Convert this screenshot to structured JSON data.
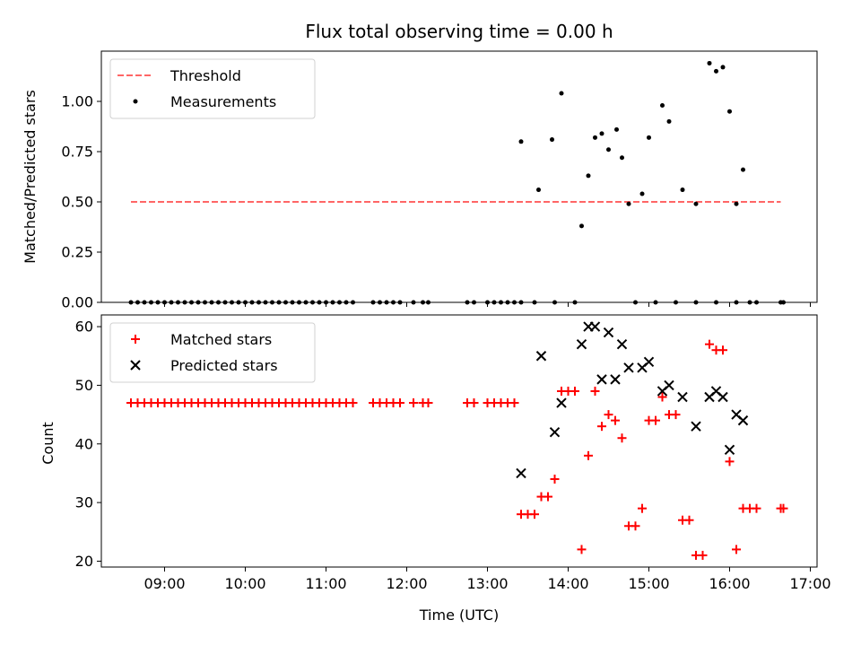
{
  "chart_data": [
    {
      "type": "scatter",
      "title": "Flux total observing time = 0.00 h",
      "xlabel": "",
      "ylabel": "Matched/Predicted stars",
      "xlim": [
        "08:13",
        "17:05"
      ],
      "ylim": [
        0,
        1.25
      ],
      "yticks": [
        "0.00",
        "0.25",
        "0.50",
        "0.75",
        "1.00"
      ],
      "grid": false,
      "legend_position": "top-left",
      "threshold": {
        "name": "Threshold",
        "value": 0.5,
        "x_range": [
          "08:35",
          "16:38"
        ],
        "color": "#ff6666",
        "style": "dashed"
      },
      "series": [
        {
          "name": "Measurements",
          "marker": "dot",
          "color": "#000000",
          "points": [
            [
              "08:35",
              0
            ],
            [
              "08:40",
              0
            ],
            [
              "08:45",
              0
            ],
            [
              "08:50",
              0
            ],
            [
              "08:55",
              0
            ],
            [
              "09:00",
              0
            ],
            [
              "09:05",
              0
            ],
            [
              "09:10",
              0
            ],
            [
              "09:15",
              0
            ],
            [
              "09:20",
              0
            ],
            [
              "09:25",
              0
            ],
            [
              "09:30",
              0
            ],
            [
              "09:35",
              0
            ],
            [
              "09:40",
              0
            ],
            [
              "09:45",
              0
            ],
            [
              "09:50",
              0
            ],
            [
              "09:55",
              0
            ],
            [
              "10:00",
              0
            ],
            [
              "10:05",
              0
            ],
            [
              "10:10",
              0
            ],
            [
              "10:15",
              0
            ],
            [
              "10:20",
              0
            ],
            [
              "10:25",
              0
            ],
            [
              "10:30",
              0
            ],
            [
              "10:35",
              0
            ],
            [
              "10:40",
              0
            ],
            [
              "10:45",
              0
            ],
            [
              "10:50",
              0
            ],
            [
              "10:55",
              0
            ],
            [
              "11:00",
              0
            ],
            [
              "11:05",
              0
            ],
            [
              "11:10",
              0
            ],
            [
              "11:15",
              0
            ],
            [
              "11:20",
              0
            ],
            [
              "11:35",
              0
            ],
            [
              "11:40",
              0
            ],
            [
              "11:45",
              0
            ],
            [
              "11:50",
              0
            ],
            [
              "11:55",
              0
            ],
            [
              "12:05",
              0
            ],
            [
              "12:12",
              0
            ],
            [
              "12:16",
              0
            ],
            [
              "12:45",
              0
            ],
            [
              "12:50",
              0
            ],
            [
              "13:00",
              0
            ],
            [
              "13:05",
              0
            ],
            [
              "13:10",
              0
            ],
            [
              "13:15",
              0
            ],
            [
              "13:20",
              0
            ],
            [
              "13:25",
              0
            ],
            [
              "13:35",
              0
            ],
            [
              "13:50",
              0
            ],
            [
              "14:05",
              0
            ],
            [
              "14:50",
              0
            ],
            [
              "15:05",
              0
            ],
            [
              "15:20",
              0
            ],
            [
              "15:35",
              0
            ],
            [
              "15:50",
              0
            ],
            [
              "16:05",
              0
            ],
            [
              "16:15",
              0
            ],
            [
              "16:20",
              0
            ],
            [
              "16:38",
              0
            ],
            [
              "16:40",
              0
            ],
            [
              "13:25",
              0.8
            ],
            [
              "13:38",
              0.56
            ],
            [
              "13:48",
              0.81
            ],
            [
              "13:55",
              1.04
            ],
            [
              "14:10",
              0.38
            ],
            [
              "14:15",
              0.63
            ],
            [
              "14:20",
              0.82
            ],
            [
              "14:25",
              0.84
            ],
            [
              "14:30",
              0.76
            ],
            [
              "14:36",
              0.86
            ],
            [
              "14:40",
              0.72
            ],
            [
              "14:45",
              0.49
            ],
            [
              "14:55",
              0.54
            ],
            [
              "15:00",
              0.82
            ],
            [
              "15:10",
              0.98
            ],
            [
              "15:15",
              0.9
            ],
            [
              "15:25",
              0.56
            ],
            [
              "15:35",
              0.49
            ],
            [
              "15:45",
              1.19
            ],
            [
              "15:50",
              1.15
            ],
            [
              "15:55",
              1.17
            ],
            [
              "16:00",
              0.95
            ],
            [
              "16:05",
              0.49
            ],
            [
              "16:10",
              0.66
            ]
          ]
        }
      ]
    },
    {
      "type": "scatter",
      "title": "",
      "xlabel": "Time (UTC)",
      "ylabel": "Count",
      "xlim": [
        "08:13",
        "17:05"
      ],
      "ylim": [
        19,
        62
      ],
      "yticks": [
        "20",
        "30",
        "40",
        "50",
        "60"
      ],
      "xticks": [
        "09:00",
        "10:00",
        "11:00",
        "12:00",
        "13:00",
        "14:00",
        "15:00",
        "16:00",
        "17:00"
      ],
      "grid": false,
      "legend_position": "top-left",
      "series": [
        {
          "name": "Matched stars",
          "marker": "plus",
          "color": "#ff0000",
          "points": [
            [
              "08:35",
              47
            ],
            [
              "08:40",
              47
            ],
            [
              "08:45",
              47
            ],
            [
              "08:50",
              47
            ],
            [
              "08:55",
              47
            ],
            [
              "09:00",
              47
            ],
            [
              "09:05",
              47
            ],
            [
              "09:10",
              47
            ],
            [
              "09:15",
              47
            ],
            [
              "09:20",
              47
            ],
            [
              "09:25",
              47
            ],
            [
              "09:30",
              47
            ],
            [
              "09:35",
              47
            ],
            [
              "09:40",
              47
            ],
            [
              "09:45",
              47
            ],
            [
              "09:50",
              47
            ],
            [
              "09:55",
              47
            ],
            [
              "10:00",
              47
            ],
            [
              "10:05",
              47
            ],
            [
              "10:10",
              47
            ],
            [
              "10:15",
              47
            ],
            [
              "10:20",
              47
            ],
            [
              "10:25",
              47
            ],
            [
              "10:30",
              47
            ],
            [
              "10:35",
              47
            ],
            [
              "10:40",
              47
            ],
            [
              "10:45",
              47
            ],
            [
              "10:50",
              47
            ],
            [
              "10:55",
              47
            ],
            [
              "11:00",
              47
            ],
            [
              "11:05",
              47
            ],
            [
              "11:10",
              47
            ],
            [
              "11:15",
              47
            ],
            [
              "11:20",
              47
            ],
            [
              "11:35",
              47
            ],
            [
              "11:40",
              47
            ],
            [
              "11:45",
              47
            ],
            [
              "11:50",
              47
            ],
            [
              "11:55",
              47
            ],
            [
              "12:05",
              47
            ],
            [
              "12:12",
              47
            ],
            [
              "12:16",
              47
            ],
            [
              "12:45",
              47
            ],
            [
              "12:50",
              47
            ],
            [
              "13:00",
              47
            ],
            [
              "13:05",
              47
            ],
            [
              "13:10",
              47
            ],
            [
              "13:15",
              47
            ],
            [
              "13:20",
              47
            ],
            [
              "13:25",
              28
            ],
            [
              "13:30",
              28
            ],
            [
              "13:35",
              28
            ],
            [
              "13:40",
              31
            ],
            [
              "13:45",
              31
            ],
            [
              "13:50",
              34
            ],
            [
              "13:55",
              49
            ],
            [
              "14:00",
              49
            ],
            [
              "14:05",
              49
            ],
            [
              "14:10",
              22
            ],
            [
              "14:15",
              38
            ],
            [
              "14:20",
              49
            ],
            [
              "14:25",
              43
            ],
            [
              "14:30",
              45
            ],
            [
              "14:35",
              44
            ],
            [
              "14:40",
              41
            ],
            [
              "14:45",
              26
            ],
            [
              "14:50",
              26
            ],
            [
              "14:55",
              29
            ],
            [
              "15:00",
              44
            ],
            [
              "15:05",
              44
            ],
            [
              "15:10",
              48
            ],
            [
              "15:15",
              45
            ],
            [
              "15:20",
              45
            ],
            [
              "15:25",
              27
            ],
            [
              "15:30",
              27
            ],
            [
              "15:35",
              21
            ],
            [
              "15:40",
              21
            ],
            [
              "15:45",
              57
            ],
            [
              "15:50",
              56
            ],
            [
              "15:55",
              56
            ],
            [
              "16:00",
              37
            ],
            [
              "16:05",
              22
            ],
            [
              "16:10",
              29
            ],
            [
              "16:15",
              29
            ],
            [
              "16:20",
              29
            ],
            [
              "16:38",
              29
            ],
            [
              "16:40",
              29
            ]
          ]
        },
        {
          "name": "Predicted stars",
          "marker": "x",
          "color": "#000000",
          "points": [
            [
              "13:25",
              35
            ],
            [
              "13:40",
              55
            ],
            [
              "13:50",
              42
            ],
            [
              "13:55",
              47
            ],
            [
              "14:10",
              57
            ],
            [
              "14:15",
              60
            ],
            [
              "14:20",
              60
            ],
            [
              "14:25",
              51
            ],
            [
              "14:30",
              59
            ],
            [
              "14:35",
              51
            ],
            [
              "14:40",
              57
            ],
            [
              "14:45",
              53
            ],
            [
              "14:55",
              53
            ],
            [
              "15:00",
              54
            ],
            [
              "15:10",
              49
            ],
            [
              "15:15",
              50
            ],
            [
              "15:25",
              48
            ],
            [
              "15:35",
              43
            ],
            [
              "15:45",
              48
            ],
            [
              "15:50",
              49
            ],
            [
              "15:55",
              48
            ],
            [
              "16:00",
              39
            ],
            [
              "16:05",
              45
            ],
            [
              "16:10",
              44
            ]
          ]
        }
      ]
    }
  ]
}
